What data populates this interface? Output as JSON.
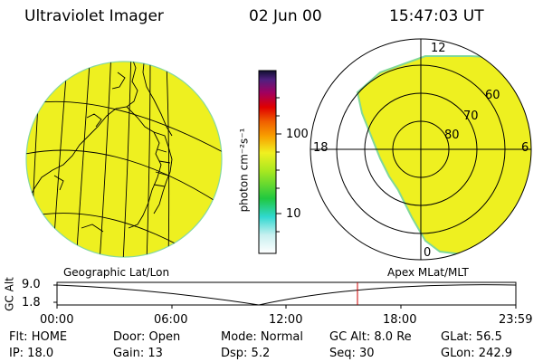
{
  "header": {
    "title": "Ultraviolet Imager",
    "date": "02 Jun 00",
    "time": "15:47:03 UT"
  },
  "colorbar": {
    "unit_label": "photon cm⁻²s⁻¹",
    "tick_labels": [
      "100",
      "10"
    ],
    "fill_color": "#eef020"
  },
  "polar_plot": {
    "mlt_labels": [
      "12",
      "18",
      "6",
      "0"
    ],
    "lat_labels": [
      "60",
      "70",
      "80"
    ]
  },
  "projection_labels": {
    "left": "Geographic Lat/Lon",
    "right": "Apex MLat/MLT"
  },
  "altitude_strip": {
    "axis_label": "GC Alt",
    "y_ticks": [
      "9.0",
      "1.8"
    ],
    "x_ticks": [
      "00:00",
      "06:00",
      "12:00",
      "18:00",
      "23:59"
    ],
    "marker_color": "#cc0000"
  },
  "status": {
    "flt": "Flt: HOME",
    "door": "Door: Open",
    "mode": "Mode: Normal",
    "gc_alt": "GC Alt: 8.0 Re",
    "glat": "GLat:  56.5",
    "ip": "IP: 18.0",
    "gain": "Gain: 13",
    "dsp": "Dsp:      5.2",
    "seq": "Seq: 30",
    "glon": "GLon: 242.9"
  }
}
